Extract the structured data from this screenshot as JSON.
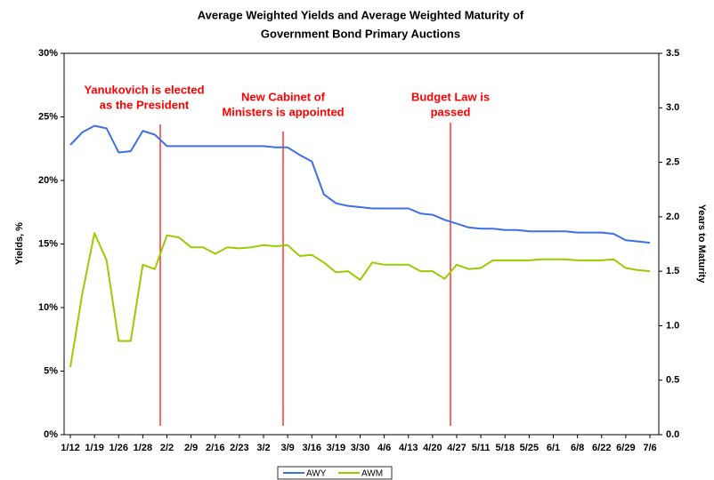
{
  "chart_data": {
    "type": "line",
    "title": [
      "Average Weighted Yields and Average Weighted Maturity of",
      "Government Bond Primary Auctions"
    ],
    "ylabel": "Yields, %",
    "y2label": "Years to Maturity",
    "categories": [
      "1/12",
      null,
      "1/19",
      null,
      "1/26",
      null,
      "1/28",
      null,
      "2/2",
      null,
      "2/9",
      null,
      "2/16",
      null,
      "2/23",
      null,
      "3/2",
      null,
      "3/9",
      null,
      "3/16",
      null,
      "3/19",
      null,
      "3/30",
      null,
      "4/6",
      null,
      "4/13",
      null,
      "4/20",
      null,
      "4/27",
      null,
      "5/11",
      null,
      "5/18",
      null,
      "5/25",
      null,
      "6/1",
      null,
      "6/8",
      null,
      "6/22",
      null,
      "6/29",
      null,
      "7/6"
    ],
    "series": [
      {
        "name": "AWY",
        "color": "#3f6fe8",
        "values": [
          22.8,
          23.8,
          24.3,
          24.1,
          22.2,
          22.3,
          23.9,
          23.6,
          22.7,
          22.7,
          22.7,
          22.7,
          22.7,
          22.7,
          22.7,
          22.7,
          22.7,
          22.6,
          22.6,
          22.0,
          21.5,
          18.9,
          18.2,
          18.0,
          17.9,
          17.8,
          17.8,
          17.8,
          17.8,
          17.4,
          17.3,
          16.9,
          16.6,
          16.3,
          16.2,
          16.2,
          16.1,
          16.1,
          16.0,
          16.0,
          16.0,
          16.0,
          15.9,
          15.9,
          15.9,
          15.8,
          15.3,
          15.2,
          15.1
        ]
      },
      {
        "name": "AWM",
        "color": "#99cc00",
        "axis": "y2",
        "values": [
          0.62,
          1.3,
          1.85,
          1.6,
          0.86,
          0.86,
          1.56,
          1.52,
          1.83,
          1.81,
          1.72,
          1.72,
          1.66,
          1.72,
          1.71,
          1.72,
          1.74,
          1.73,
          1.74,
          1.64,
          1.65,
          1.58,
          1.49,
          1.5,
          1.42,
          1.58,
          1.56,
          1.56,
          1.56,
          1.5,
          1.5,
          1.43,
          1.56,
          1.52,
          1.53,
          1.6,
          1.6,
          1.6,
          1.6,
          1.61,
          1.61,
          1.61,
          1.6,
          1.6,
          1.6,
          1.61,
          1.53,
          1.51,
          1.5
        ]
      }
    ],
    "ylim": [
      0,
      30
    ],
    "yticks": [
      {
        "value": 0,
        "label": "0%"
      },
      {
        "value": 5,
        "label": "5%"
      },
      {
        "value": 10,
        "label": "10%"
      },
      {
        "value": 15,
        "label": "15%"
      },
      {
        "value": 20,
        "label": "20%"
      },
      {
        "value": 25,
        "label": "25%"
      },
      {
        "value": 30,
        "label": "30%"
      }
    ],
    "y2lim": [
      0,
      3.5
    ],
    "y2ticks": [
      {
        "value": 0,
        "label": "0.0"
      },
      0.5,
      {
        "value": 1,
        "label": "1.0"
      },
      1.5,
      {
        "value": 2,
        "label": "2.0"
      },
      2.5,
      {
        "value": 3,
        "label": "3.0"
      },
      3.5
    ],
    "annotations": [
      {
        "lines": [
          "Yanukovich is elected",
          "as the President"
        ],
        "color": "#ff0000"
      },
      {
        "lines": [
          "New Cabinet of",
          "Ministers is appointed"
        ],
        "color": "#ff0000"
      },
      {
        "lines": [
          "Budget Law is",
          "passed"
        ],
        "color": "#ff0000"
      }
    ],
    "legend": "bottom",
    "grid": false
  }
}
